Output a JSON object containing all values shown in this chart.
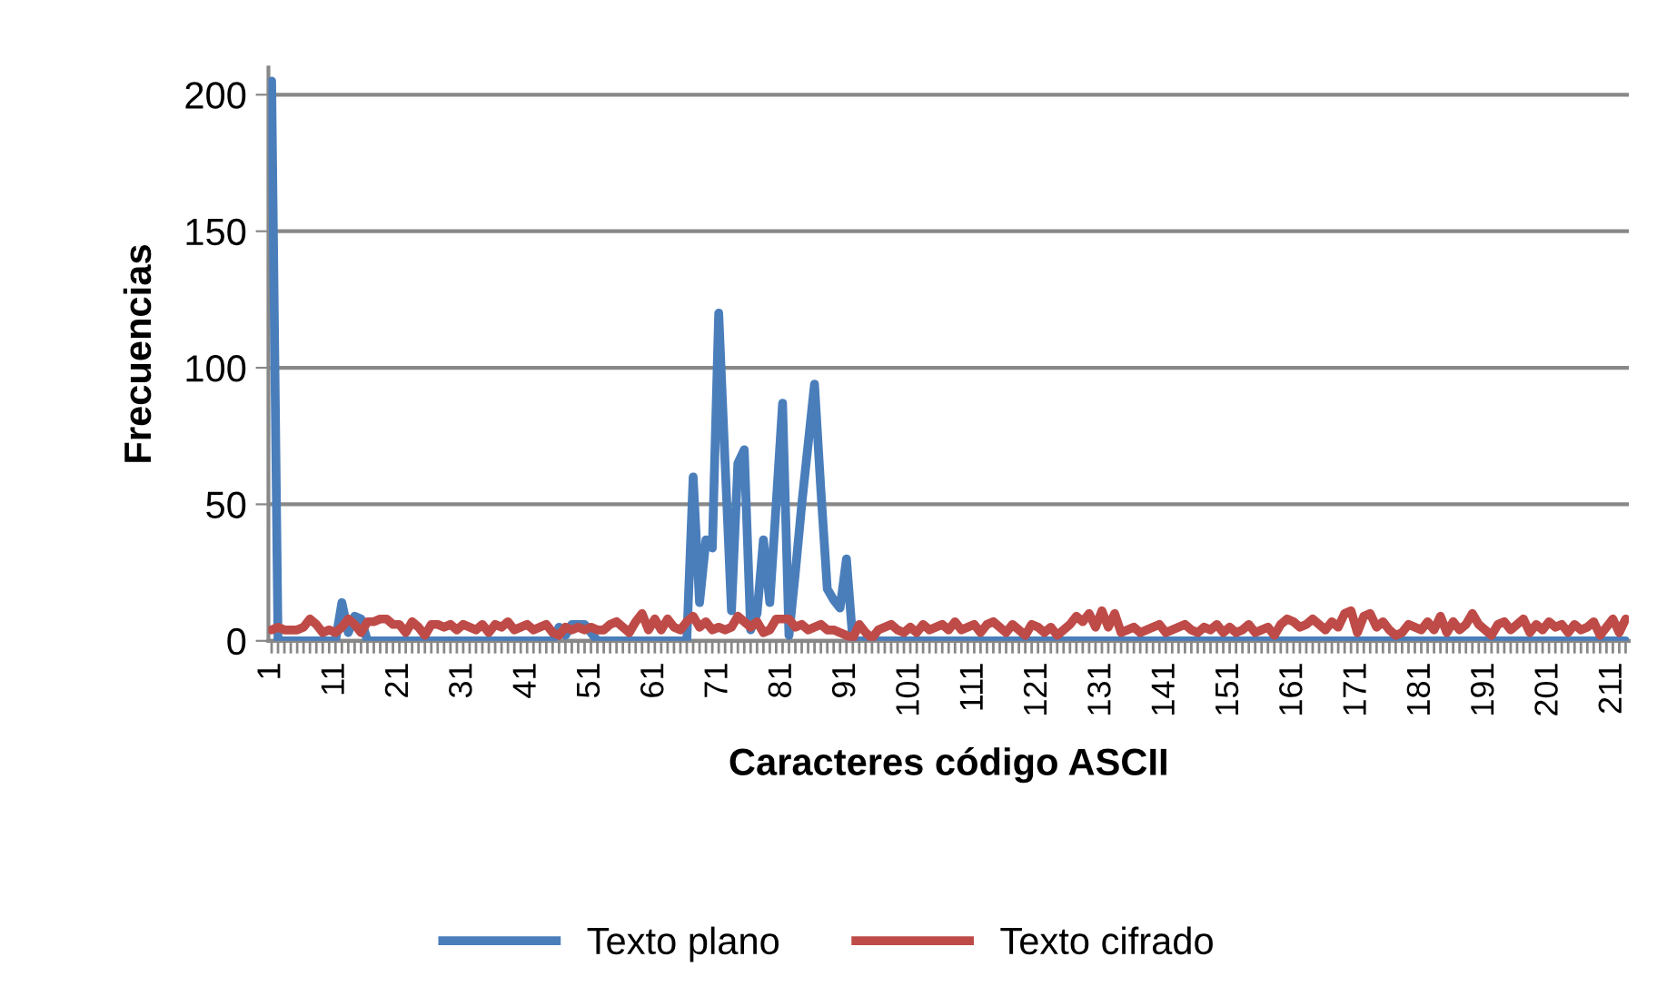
{
  "chart_data": {
    "type": "line",
    "xlabel": "Caracteres código ASCII",
    "ylabel": "Frecuencias",
    "categories": [
      "1",
      null,
      null,
      null,
      null,
      null,
      null,
      null,
      null,
      null,
      "11",
      null,
      null,
      null,
      null,
      null,
      null,
      null,
      null,
      null,
      "21",
      null,
      null,
      null,
      null,
      null,
      null,
      null,
      null,
      null,
      "31",
      null,
      null,
      null,
      null,
      null,
      null,
      null,
      null,
      null,
      "41",
      null,
      null,
      null,
      null,
      null,
      null,
      null,
      null,
      null,
      "51",
      null,
      null,
      null,
      null,
      null,
      null,
      null,
      null,
      null,
      "61",
      null,
      null,
      null,
      null,
      null,
      null,
      null,
      null,
      null,
      "71",
      null,
      null,
      null,
      null,
      null,
      null,
      null,
      null,
      null,
      "81",
      null,
      null,
      null,
      null,
      null,
      null,
      null,
      null,
      null,
      "91",
      null,
      null,
      null,
      null,
      null,
      null,
      null,
      null,
      null,
      "101",
      null,
      null,
      null,
      null,
      null,
      null,
      null,
      null,
      null,
      "111",
      null,
      null,
      null,
      null,
      null,
      null,
      null,
      null,
      null,
      "121",
      null,
      null,
      null,
      null,
      null,
      null,
      null,
      null,
      null,
      "131",
      null,
      null,
      null,
      null,
      null,
      null,
      null,
      null,
      null,
      "141",
      null,
      null,
      null,
      null,
      null,
      null,
      null,
      null,
      null,
      "151",
      null,
      null,
      null,
      null,
      null,
      null,
      null,
      null,
      null,
      "161",
      null,
      null,
      null,
      null,
      null,
      null,
      null,
      null,
      null,
      "171",
      null,
      null,
      null,
      null,
      null,
      null,
      null,
      null,
      null,
      "181",
      null,
      null,
      null,
      null,
      null,
      null,
      null,
      null,
      null,
      "191",
      null,
      null,
      null,
      null,
      null,
      null,
      null,
      null,
      null,
      "201",
      null,
      null,
      null,
      null,
      null,
      null,
      null,
      null,
      null,
      "211",
      null,
      null
    ],
    "series": [
      {
        "name": "Texto plano",
        "color": "#4a7ebb",
        "values": [
          205,
          0,
          0,
          0,
          0,
          0,
          0,
          0,
          0,
          0,
          0,
          14,
          3,
          9,
          8,
          0,
          0,
          0,
          0,
          0,
          0,
          0,
          0,
          0,
          0,
          0,
          0,
          0,
          0,
          0,
          0,
          0,
          0,
          0,
          0,
          0,
          0,
          0,
          0,
          0,
          0,
          0,
          0,
          0,
          0,
          5,
          2,
          6,
          6,
          6,
          3,
          0,
          0,
          0,
          0,
          0,
          0,
          0,
          0,
          0,
          0,
          0,
          0,
          0,
          0,
          0,
          60,
          14,
          37,
          34,
          120,
          65,
          11,
          65,
          70,
          4,
          10,
          37,
          14,
          50,
          87,
          2,
          25,
          50,
          72,
          94,
          55,
          19,
          15,
          12,
          30,
          0,
          0,
          0,
          0,
          0,
          0,
          0,
          0,
          0,
          0,
          0,
          0,
          0,
          0,
          0,
          0,
          0,
          0,
          0,
          0,
          0,
          0,
          0,
          0,
          0,
          0,
          0,
          0,
          0,
          0,
          0,
          0,
          0,
          0,
          0,
          0,
          0,
          0,
          0,
          0,
          0,
          0,
          0,
          0,
          0,
          0,
          0,
          0,
          0,
          0,
          0,
          0,
          0,
          0,
          0,
          0,
          0,
          0,
          0,
          0,
          0,
          0,
          0,
          0,
          0,
          0,
          0,
          0,
          0,
          0,
          0,
          0,
          0,
          0,
          0,
          0,
          0,
          0,
          0,
          0,
          0,
          0,
          0,
          0,
          0,
          0,
          0,
          0,
          0,
          0,
          0,
          0,
          0,
          0,
          0,
          0,
          0,
          0,
          0,
          0,
          0,
          0,
          0,
          0,
          0,
          0,
          0,
          0,
          0,
          0,
          0,
          0,
          0,
          0,
          0,
          0,
          0,
          0,
          0,
          0,
          0,
          0
        ]
      },
      {
        "name": "Texto cifrado",
        "color": "#be4b48",
        "values": [
          4,
          5,
          4,
          4,
          4,
          5,
          8,
          6,
          3,
          4,
          3,
          5,
          8,
          6,
          3,
          7,
          7,
          8,
          8,
          6,
          6,
          3,
          7,
          5,
          2,
          6,
          6,
          5,
          6,
          4,
          6,
          5,
          4,
          6,
          3,
          6,
          5,
          7,
          4,
          5,
          6,
          4,
          5,
          6,
          3,
          2,
          5,
          4,
          5,
          4,
          5,
          4,
          4,
          6,
          7,
          5,
          3,
          7,
          10,
          4,
          8,
          4,
          8,
          5,
          4,
          7,
          9,
          5,
          7,
          4,
          5,
          4,
          5,
          9,
          7,
          5,
          7,
          3,
          4,
          8,
          8,
          8,
          5,
          6,
          4,
          5,
          6,
          4,
          4,
          3,
          2,
          1,
          6,
          3,
          1,
          4,
          5,
          6,
          4,
          3,
          5,
          3,
          6,
          4,
          5,
          6,
          4,
          7,
          4,
          5,
          6,
          3,
          6,
          7,
          5,
          3,
          6,
          4,
          2,
          6,
          5,
          3,
          5,
          2,
          4,
          6,
          9,
          7,
          10,
          5,
          11,
          5,
          10,
          3,
          4,
          5,
          3,
          4,
          5,
          6,
          3,
          4,
          5,
          6,
          4,
          3,
          5,
          4,
          6,
          3,
          5,
          3,
          4,
          6,
          3,
          4,
          5,
          2,
          6,
          8,
          7,
          5,
          6,
          8,
          6,
          4,
          7,
          5,
          10,
          11,
          3,
          9,
          10,
          5,
          7,
          4,
          2,
          3,
          6,
          5,
          4,
          7,
          4,
          9,
          3,
          7,
          4,
          6,
          10,
          6,
          4,
          2,
          6,
          7,
          4,
          6,
          8,
          3,
          6,
          4,
          7,
          5,
          6,
          3,
          6,
          4,
          5,
          7,
          2,
          5,
          8,
          3,
          8
        ]
      }
    ],
    "ylim": [
      0,
      210
    ],
    "yticks": [
      0,
      50,
      100,
      150,
      200
    ],
    "grid": "y",
    "legend": "bottom",
    "marker": "none",
    "line_style": "solid"
  }
}
